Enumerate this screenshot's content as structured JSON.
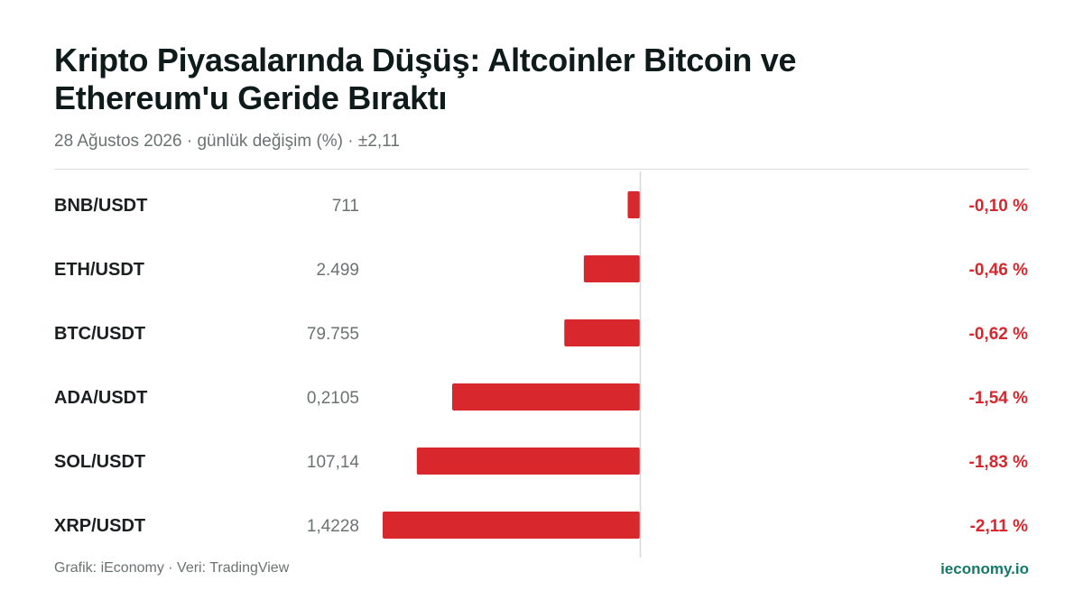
{
  "header": {
    "title_line1": "Kripto Piyasalarında Düşüş: Altcoinler Bitcoin ve",
    "title_line2": "Ethereum'u Geride Bıraktı",
    "subtitle": "28 Ağustos 2026 · günlük değişim (%) · ±2,11"
  },
  "footer": {
    "credit": "Grafik: iEconomy · Veri: TradingView",
    "brand": "ieconomy.io"
  },
  "colors": {
    "bar": "#d9272e",
    "negative_text": "#d9272e",
    "brand": "#137a6a"
  },
  "chart_data": {
    "type": "bar",
    "orientation": "horizontal",
    "categories": [
      "BNB/USDT",
      "ETH/USDT",
      "BTC/USDT",
      "ADA/USDT",
      "SOL/USDT",
      "XRP/USDT"
    ],
    "prices": [
      "711",
      "2.499",
      "79.755",
      "0,2105",
      "107,14",
      "1,4228"
    ],
    "values": [
      -0.1,
      -0.46,
      -0.62,
      -1.54,
      -1.83,
      -2.11
    ],
    "value_labels": [
      "-0,10 %",
      "-0,46 %",
      "-0,62 %",
      "-1,54 %",
      "-1,83 %",
      "-2,11 %"
    ],
    "xlim": [
      -2.11,
      2.11
    ],
    "grid": false,
    "legend": "none"
  }
}
